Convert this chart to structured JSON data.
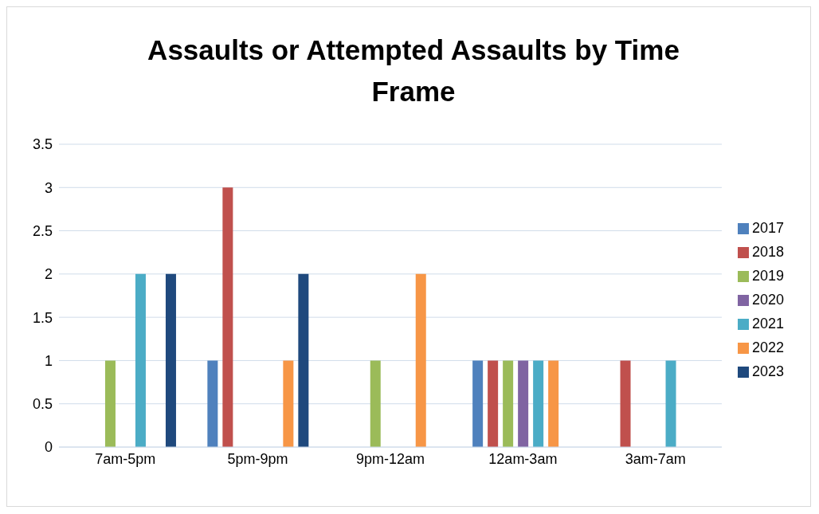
{
  "chart_data": {
    "type": "bar",
    "title": "Assaults or Attempted Assaults by Time Frame",
    "categories": [
      "7am-5pm",
      "5pm-9pm",
      "9pm-12am",
      "12am-3am",
      "3am-7am"
    ],
    "series": [
      {
        "name": "2017",
        "color": "#4f81bd",
        "values": [
          0,
          1,
          0,
          1,
          0
        ]
      },
      {
        "name": "2018",
        "color": "#c0504d",
        "values": [
          0,
          3,
          0,
          1,
          1
        ]
      },
      {
        "name": "2019",
        "color": "#9bbb59",
        "values": [
          1,
          0,
          1,
          1,
          0
        ]
      },
      {
        "name": "2020",
        "color": "#8064a2",
        "values": [
          0,
          0,
          0,
          1,
          0
        ]
      },
      {
        "name": "2021",
        "color": "#4bacc6",
        "values": [
          2,
          0,
          0,
          1,
          1
        ]
      },
      {
        "name": "2022",
        "color": "#f79646",
        "values": [
          0,
          1,
          2,
          1,
          0
        ]
      },
      {
        "name": "2023",
        "color": "#1f497d",
        "values": [
          2,
          2,
          0,
          0,
          0
        ]
      }
    ],
    "ylim": [
      0,
      3.5
    ],
    "yticks": [
      0,
      0.5,
      1,
      1.5,
      2,
      2.5,
      3,
      3.5
    ],
    "grid": "y",
    "legend": "right"
  }
}
